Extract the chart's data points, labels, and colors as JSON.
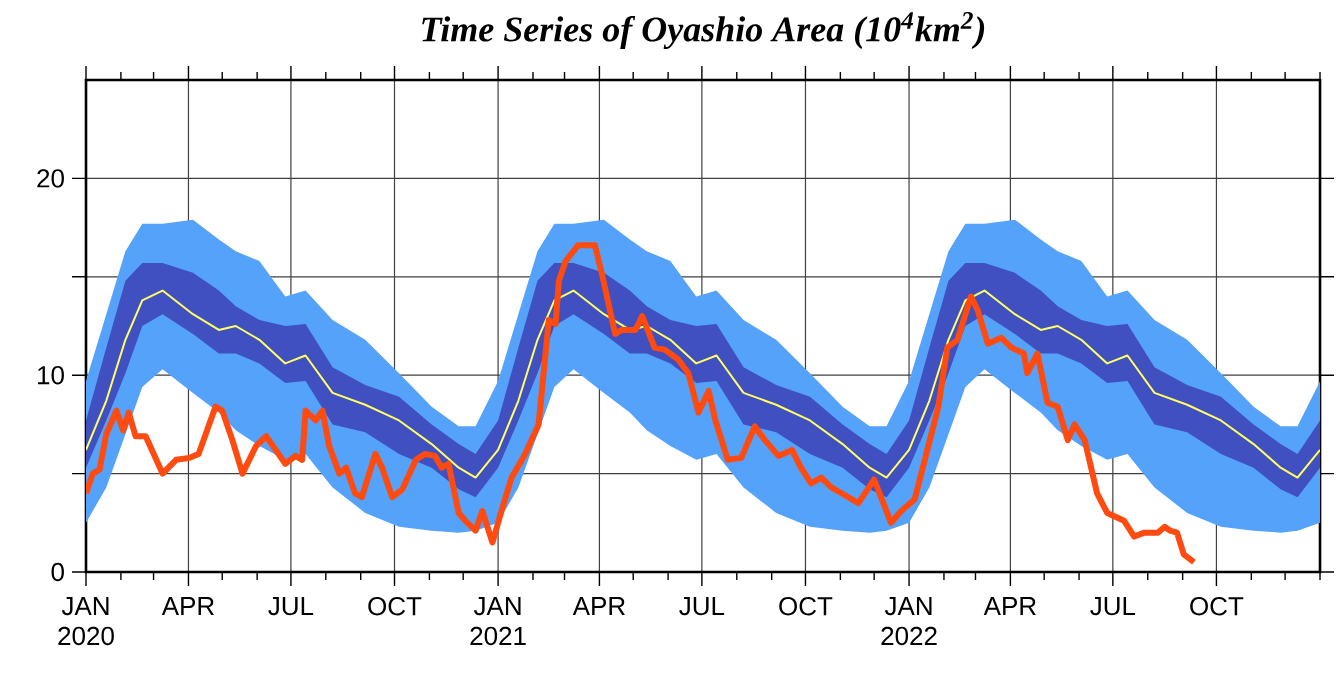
{
  "chart_data": {
    "type": "line",
    "title": "Time Series of Oyashio Area (10$^{4}$km$^{2}$)",
    "x": [
      "2020-01-01",
      "2020-01-19",
      "2020-02-05",
      "2020-02-20",
      "2020-03-09",
      "2020-04-05",
      "2020-04-28",
      "2020-05-13",
      "2020-06-03",
      "2020-06-26",
      "2020-07-14",
      "2020-08-07",
      "2020-09-05",
      "2020-10-05",
      "2020-11-03",
      "2020-11-27",
      "2020-12-12",
      "2021-01-01",
      "2021-01-19",
      "2021-02-05",
      "2021-02-20",
      "2021-03-09",
      "2021-04-05",
      "2021-04-28",
      "2021-05-13",
      "2021-06-03",
      "2021-06-26",
      "2021-07-14",
      "2021-08-07",
      "2021-09-05",
      "2021-10-05",
      "2021-11-03",
      "2021-11-27",
      "2021-12-12",
      "2022-01-01",
      "2022-01-19",
      "2022-02-05",
      "2022-02-20",
      "2022-03-09",
      "2022-04-05",
      "2022-04-28",
      "2022-05-13",
      "2022-06-03",
      "2022-06-26",
      "2022-07-14",
      "2022-08-07",
      "2022-09-05",
      "2022-10-05",
      "2022-11-03",
      "2022-11-27",
      "2022-12-12",
      "2023-01-01"
    ],
    "series": [
      {
        "color": "#55a2fa",
        "values": [
          null,
          null,
          null,
          null,
          null,
          null,
          null,
          null,
          null,
          null,
          null,
          null,
          null,
          null,
          null,
          null,
          null,
          null,
          null,
          null,
          null,
          null,
          null,
          null,
          null,
          null,
          null,
          null,
          null,
          null,
          null,
          null,
          null,
          null,
          null,
          null,
          null,
          null,
          null,
          null,
          null,
          null,
          null,
          null,
          null,
          null,
          null,
          null,
          null,
          null,
          null,
          null
        ],
        "upper": [
          9.7,
          13.1,
          16.3,
          17.7,
          17.7,
          17.9,
          16.9,
          16.3,
          15.8,
          14.0,
          14.3,
          12.8,
          11.8,
          10.1,
          8.4,
          7.4,
          7.4,
          9.7,
          13.1,
          16.3,
          17.7,
          17.7,
          17.9,
          16.9,
          16.3,
          15.8,
          14.0,
          14.3,
          12.8,
          11.8,
          10.1,
          8.4,
          7.4,
          7.4,
          9.7,
          13.1,
          16.3,
          17.7,
          17.7,
          17.9,
          16.9,
          16.3,
          15.8,
          14.0,
          14.3,
          12.8,
          11.8,
          10.1,
          8.4,
          7.4,
          7.4,
          9.7
        ],
        "lower": [
          2.5,
          4.3,
          7.0,
          9.4,
          10.3,
          9.1,
          8.1,
          7.2,
          6.4,
          5.7,
          6.0,
          4.3,
          3.0,
          2.3,
          2.1,
          2.0,
          2.1,
          2.5,
          4.3,
          7.0,
          9.4,
          10.3,
          9.1,
          8.1,
          7.2,
          6.4,
          5.7,
          6.0,
          4.3,
          3.0,
          2.3,
          2.1,
          2.0,
          2.1,
          2.5,
          4.3,
          7.0,
          9.4,
          10.3,
          9.1,
          8.1,
          7.2,
          6.4,
          5.7,
          6.0,
          4.3,
          3.0,
          2.3,
          2.1,
          2.0,
          2.1,
          2.5
        ]
      },
      {
        "color": "#4050c0",
        "values": [
          null,
          null,
          null,
          null,
          null,
          null,
          null,
          null,
          null,
          null,
          null,
          null,
          null,
          null,
          null,
          null,
          null,
          null,
          null,
          null,
          null,
          null,
          null,
          null,
          null,
          null,
          null,
          null,
          null,
          null,
          null,
          null,
          null,
          null,
          null,
          null,
          null,
          null,
          null,
          null,
          null,
          null,
          null,
          null,
          null,
          null,
          null,
          null,
          null,
          null,
          null,
          null
        ],
        "upper": [
          7.7,
          11.4,
          14.8,
          15.7,
          15.7,
          15.2,
          14.3,
          13.5,
          12.8,
          12.5,
          12.6,
          10.4,
          9.5,
          8.9,
          7.5,
          6.5,
          6.0,
          7.7,
          11.4,
          14.8,
          15.7,
          15.7,
          15.2,
          14.3,
          13.5,
          12.8,
          12.5,
          12.6,
          10.4,
          9.5,
          8.9,
          7.5,
          6.5,
          6.0,
          7.7,
          11.4,
          14.8,
          15.7,
          15.7,
          15.2,
          14.3,
          13.5,
          12.8,
          12.5,
          12.6,
          10.4,
          9.5,
          8.9,
          7.5,
          6.5,
          6.0,
          7.7
        ],
        "lower": [
          5.3,
          7.7,
          10.1,
          12.5,
          13.1,
          12.1,
          11.1,
          11.1,
          10.6,
          9.6,
          9.7,
          7.5,
          7.1,
          6.0,
          5.3,
          4.2,
          3.8,
          5.3,
          7.7,
          10.1,
          12.5,
          13.1,
          12.1,
          11.1,
          11.1,
          10.6,
          9.6,
          9.7,
          7.5,
          7.1,
          6.0,
          5.3,
          4.2,
          3.8,
          5.3,
          7.7,
          10.1,
          12.5,
          13.1,
          12.1,
          11.1,
          11.1,
          10.6,
          9.6,
          9.7,
          7.5,
          7.1,
          6.0,
          5.3,
          4.2,
          3.8,
          5.3
        ]
      },
      {
        "color": "#ffff66",
        "values": [
          6.2,
          8.7,
          11.8,
          13.8,
          14.3,
          13.1,
          12.3,
          12.5,
          11.8,
          10.6,
          11.0,
          9.1,
          8.5,
          7.7,
          6.5,
          5.3,
          4.8,
          6.2,
          8.7,
          11.8,
          13.8,
          14.3,
          13.1,
          12.3,
          12.5,
          11.8,
          10.6,
          11.0,
          9.1,
          8.5,
          7.7,
          6.5,
          5.3,
          4.8,
          6.2,
          8.7,
          11.8,
          13.8,
          14.3,
          13.1,
          12.3,
          12.5,
          11.8,
          10.6,
          11.0,
          9.1,
          8.5,
          7.7,
          6.5,
          5.3,
          4.8,
          6.2
        ]
      },
      {
        "color": "#ff4a10",
        "x": [
          "2020-01-01",
          "2020-01-07",
          "2020-01-13",
          "2020-01-19",
          "2020-01-28",
          "2020-02-03",
          "2020-02-08",
          "2020-02-14",
          "2020-02-23",
          "2020-03-09",
          "2020-03-21",
          "2020-04-02",
          "2020-04-10",
          "2020-04-25",
          "2020-05-01",
          "2020-05-10",
          "2020-05-19",
          "2020-05-31",
          "2020-06-09",
          "2020-06-20",
          "2020-06-26",
          "2020-07-05",
          "2020-07-11",
          "2020-07-14",
          "2020-07-23",
          "2020-07-29",
          "2020-08-04",
          "2020-08-13",
          "2020-08-19",
          "2020-08-27",
          "2020-09-02",
          "2020-09-14",
          "2020-09-20",
          "2020-09-29",
          "2020-10-08",
          "2020-10-20",
          "2020-10-28",
          "2020-11-06",
          "2020-11-12",
          "2020-11-18",
          "2020-11-27",
          "2020-12-03",
          "2020-12-12",
          "2020-12-18",
          "2020-12-27",
          "2021-01-05",
          "2021-01-13",
          "2021-01-25",
          "2021-02-06",
          "2021-02-15",
          "2021-02-21",
          "2021-02-24",
          "2021-03-02",
          "2021-03-13",
          "2021-03-28",
          "2021-04-03",
          "2021-04-15",
          "2021-04-21",
          "2021-05-03",
          "2021-05-09",
          "2021-05-20",
          "2021-05-29",
          "2021-06-10",
          "2021-06-19",
          "2021-06-28",
          "2021-07-07",
          "2021-07-13",
          "2021-07-24",
          "2021-08-05",
          "2021-08-17",
          "2021-08-26",
          "2021-09-07",
          "2021-09-19",
          "2021-09-27",
          "2021-10-06",
          "2021-10-15",
          "2021-10-24",
          "2021-11-02",
          "2021-11-17",
          "2021-12-01",
          "2021-12-16",
          "2021-12-25",
          "2022-01-06",
          "2022-01-15",
          "2022-01-27",
          "2022-02-04",
          "2022-02-13",
          "2022-02-25",
          "2022-03-03",
          "2022-03-12",
          "2022-03-24",
          "2022-04-02",
          "2022-04-13",
          "2022-04-16",
          "2022-04-25",
          "2022-05-04",
          "2022-05-13",
          "2022-05-22",
          "2022-05-28",
          "2022-06-06",
          "2022-06-17",
          "2022-06-26",
          "2022-07-11",
          "2022-07-20",
          "2022-07-29",
          "2022-08-10",
          "2022-08-16",
          "2022-08-21",
          "2022-08-27",
          "2022-09-02",
          "2022-09-11"
        ],
        "values": [
          4.0,
          5.0,
          5.2,
          7.0,
          8.2,
          7.2,
          8.1,
          6.9,
          6.9,
          5.0,
          5.7,
          5.8,
          6.0,
          8.4,
          8.2,
          6.7,
          5.0,
          6.4,
          6.9,
          6.0,
          5.5,
          5.9,
          5.7,
          8.2,
          7.7,
          8.2,
          6.4,
          5.0,
          5.3,
          4.0,
          3.8,
          6.0,
          5.3,
          3.8,
          4.2,
          5.7,
          6.0,
          5.9,
          5.3,
          5.5,
          3.0,
          2.6,
          2.1,
          3.1,
          1.5,
          3.3,
          4.8,
          6.0,
          7.5,
          12.8,
          12.6,
          14.8,
          15.8,
          16.6,
          16.6,
          15.2,
          12.1,
          12.3,
          12.3,
          13.0,
          11.4,
          11.3,
          10.8,
          10.1,
          8.1,
          9.2,
          7.7,
          5.7,
          5.8,
          7.4,
          6.7,
          5.9,
          6.2,
          5.3,
          4.5,
          4.8,
          4.3,
          4.0,
          3.5,
          4.7,
          2.5,
          3.1,
          3.7,
          5.7,
          8.4,
          11.4,
          11.8,
          14.0,
          13.3,
          11.6,
          11.9,
          11.4,
          11.1,
          10.1,
          11.1,
          8.6,
          8.4,
          6.7,
          7.5,
          6.7,
          4.0,
          3.0,
          2.6,
          1.8,
          2.0,
          2.0,
          2.3,
          2.1,
          2.0,
          0.9,
          0.5
        ]
      }
    ],
    "xlim": [
      "2020-01-01",
      "2023-01-01"
    ],
    "xticks": [
      {
        "value": "2020-01-01",
        "label": "JAN 2020"
      },
      {
        "value": "2020-02-01",
        "label": null
      },
      {
        "value": "2020-03-01",
        "label": null
      },
      {
        "value": "2020-04-01",
        "label": "APR"
      },
      {
        "value": "2020-05-01",
        "label": null
      },
      {
        "value": "2020-06-01",
        "label": null
      },
      {
        "value": "2020-07-01",
        "label": "JUL"
      },
      {
        "value": "2020-08-01",
        "label": null
      },
      {
        "value": "2020-09-01",
        "label": null
      },
      {
        "value": "2020-10-01",
        "label": "OCT"
      },
      {
        "value": "2020-11-01",
        "label": null
      },
      {
        "value": "2020-12-01",
        "label": null
      },
      {
        "value": "2021-01-01",
        "label": "JAN 2021"
      },
      {
        "value": "2021-02-01",
        "label": null
      },
      {
        "value": "2021-03-01",
        "label": null
      },
      {
        "value": "2021-04-01",
        "label": "APR"
      },
      {
        "value": "2021-05-01",
        "label": null
      },
      {
        "value": "2021-06-01",
        "label": null
      },
      {
        "value": "2021-07-01",
        "label": "JUL"
      },
      {
        "value": "2021-08-01",
        "label": null
      },
      {
        "value": "2021-09-01",
        "label": null
      },
      {
        "value": "2021-10-01",
        "label": "OCT"
      },
      {
        "value": "2021-11-01",
        "label": null
      },
      {
        "value": "2021-12-01",
        "label": null
      },
      {
        "value": "2022-01-01",
        "label": "JAN 2022"
      },
      {
        "value": "2022-02-01",
        "label": null
      },
      {
        "value": "2022-03-01",
        "label": null
      },
      {
        "value": "2022-04-01",
        "label": "APR"
      },
      {
        "value": "2022-05-01",
        "label": null
      },
      {
        "value": "2022-06-01",
        "label": null
      },
      {
        "value": "2022-07-01",
        "label": "JUL"
      },
      {
        "value": "2022-08-01",
        "label": null
      },
      {
        "value": "2022-09-01",
        "label": null
      },
      {
        "value": "2022-10-01",
        "label": "OCT"
      },
      {
        "value": "2022-11-01",
        "label": null
      },
      {
        "value": "2022-12-01",
        "label": null
      },
      {
        "value": "2023-01-01",
        "label": null
      }
    ],
    "ylim": [
      0,
      25
    ],
    "yticks": [
      0,
      {
        "value": 5,
        "label": null
      },
      10,
      {
        "value": 15,
        "label": null
      },
      20
    ],
    "grid": true
  }
}
